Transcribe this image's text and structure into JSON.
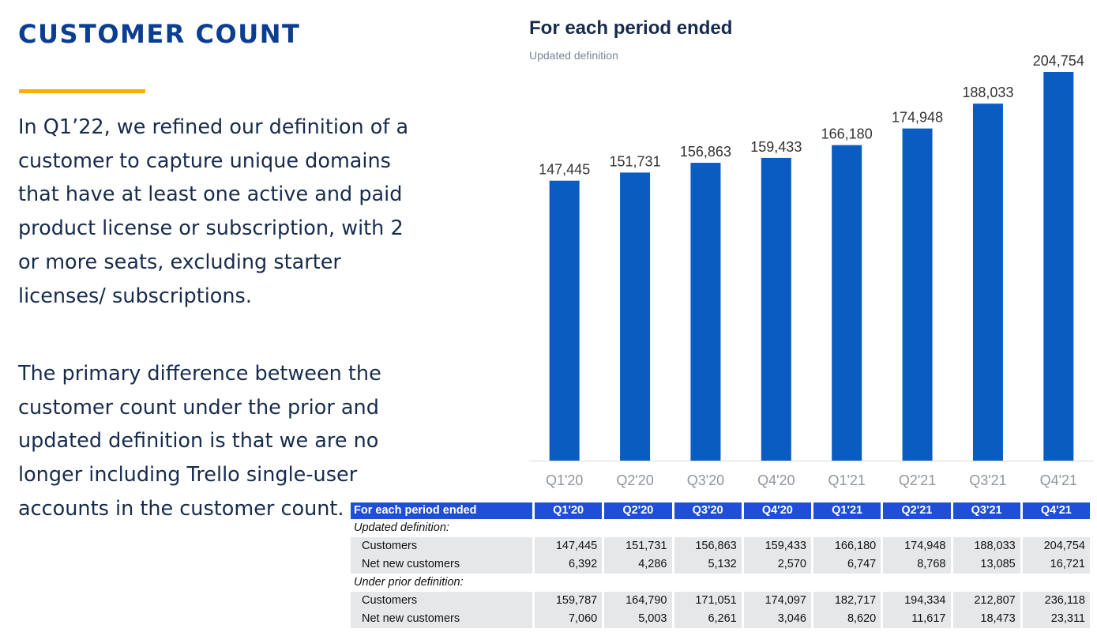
{
  "title": "CUSTOMER COUNT",
  "paragraphs": [
    "In Q1’22, we refined our definition of a customer to capture unique domains that have at least one active and paid product license or subscription, with 2 or more seats, excluding starter licenses/ subscriptions.",
    "The primary difference between the customer count under the prior and updated definition is that we are no longer including Trello single-user accounts in the customer count."
  ],
  "colors": {
    "title": "#0B3D91",
    "accent": "#FFAB00",
    "bar": "#0A5CC1",
    "table_header": "#1F4FD8",
    "row_bg": "#E6E7E9"
  },
  "chart_data": {
    "type": "bar",
    "title": "For each period ended",
    "subtitle": "Updated definition",
    "categories": [
      "Q1'20",
      "Q2'20",
      "Q3'20",
      "Q4'20",
      "Q1'21",
      "Q2'21",
      "Q3'21",
      "Q4'21"
    ],
    "values": [
      147445,
      151731,
      156863,
      159433,
      166180,
      174948,
      188033,
      204754
    ],
    "value_labels": [
      "147,445",
      "151,731",
      "156,863",
      "159,433",
      "166,180",
      "174,948",
      "188,033",
      "204,754"
    ],
    "ylim": [
      0,
      210000
    ],
    "grid": false,
    "legend": "none"
  },
  "table": {
    "header": [
      "For each period ended",
      "Q1'20",
      "Q2'20",
      "Q3'20",
      "Q4'20",
      "Q1'21",
      "Q2'21",
      "Q3'21",
      "Q4'21"
    ],
    "sections": [
      {
        "title": "Updated definition:",
        "rows": [
          {
            "label": "Customers",
            "values": [
              "147,445",
              "151,731",
              "156,863",
              "159,433",
              "166,180",
              "174,948",
              "188,033",
              "204,754"
            ]
          },
          {
            "label": "Net new customers",
            "values": [
              "6,392",
              "4,286",
              "5,132",
              "2,570",
              "6,747",
              "8,768",
              "13,085",
              "16,721"
            ]
          }
        ]
      },
      {
        "title": "Under prior definition:",
        "rows": [
          {
            "label": "Customers",
            "values": [
              "159,787",
              "164,790",
              "171,051",
              "174,097",
              "182,717",
              "194,334",
              "212,807",
              "236,118"
            ]
          },
          {
            "label": "Net new customers",
            "values": [
              "7,060",
              "5,003",
              "6,261",
              "3,046",
              "8,620",
              "11,617",
              "18,473",
              "23,311"
            ]
          }
        ]
      }
    ]
  }
}
